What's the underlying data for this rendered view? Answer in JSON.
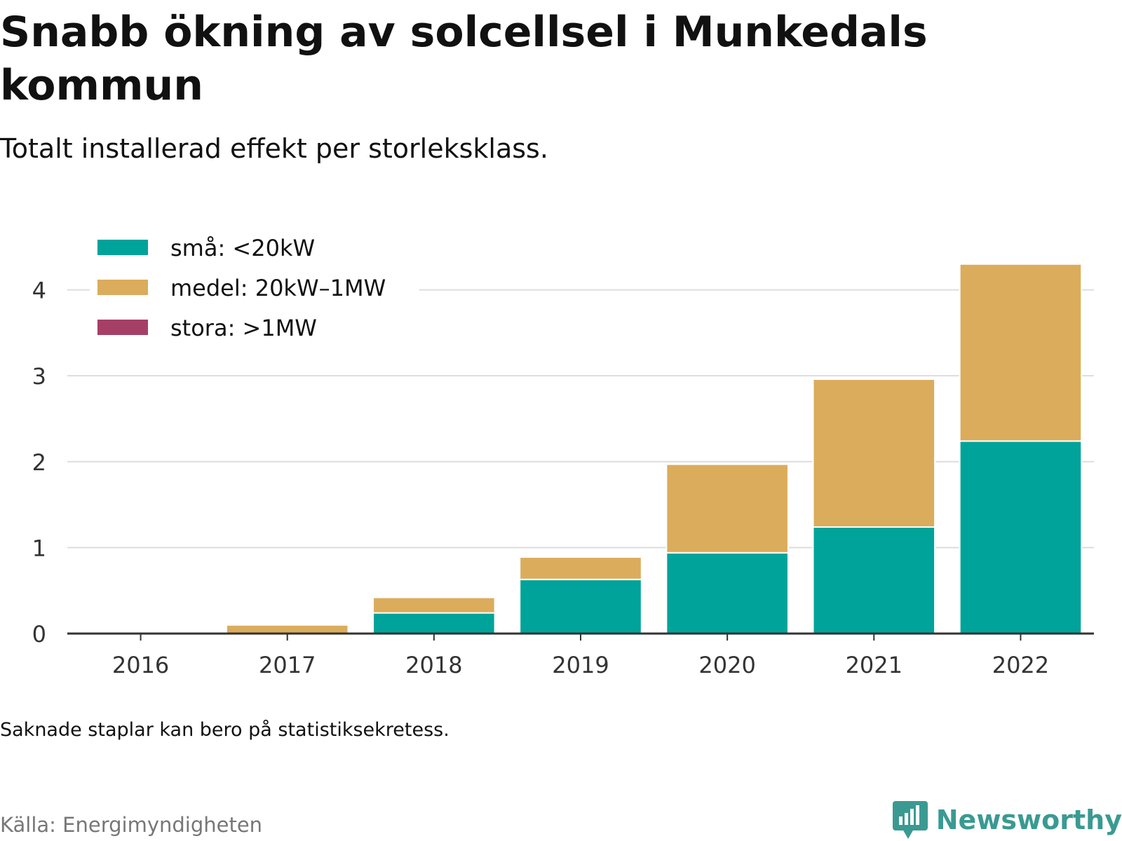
{
  "title": "Snabb ökning av solcellsel i Munkedals kommun",
  "subtitle": "Totalt installerad effekt per storleksklass.",
  "note": "Saknade staplar kan bero på statistiksekretess.",
  "source": "Källa: Energimyndigheten",
  "brand": {
    "name": "Newsworthy",
    "icon": "newsworthy-logo-icon",
    "color": "#3a9a92"
  },
  "chart_data": {
    "type": "bar",
    "stacked": true,
    "categories": [
      "2016",
      "2017",
      "2018",
      "2019",
      "2020",
      "2021",
      "2022"
    ],
    "series": [
      {
        "name": "små: <20kW",
        "color": "#00a39a",
        "values": [
          0,
          0,
          0.24,
          0.63,
          0.94,
          1.24,
          2.24
        ]
      },
      {
        "name": "medel: 20kW–1MW",
        "color": "#dbac5b",
        "values": [
          0,
          0.1,
          0.18,
          0.26,
          1.03,
          1.72,
          2.06
        ]
      },
      {
        "name": "stora: >1MW",
        "color": "#a63f66",
        "values": [
          0,
          0,
          0,
          0,
          0,
          0,
          0
        ]
      }
    ],
    "ylim": [
      0,
      4.6
    ],
    "yticks": [
      "0",
      "1",
      "2",
      "3",
      "4"
    ],
    "ytick_values": [
      0,
      1,
      2,
      3,
      4
    ],
    "grid": true,
    "legend_position": "top-left",
    "xlabel": "",
    "ylabel": ""
  }
}
